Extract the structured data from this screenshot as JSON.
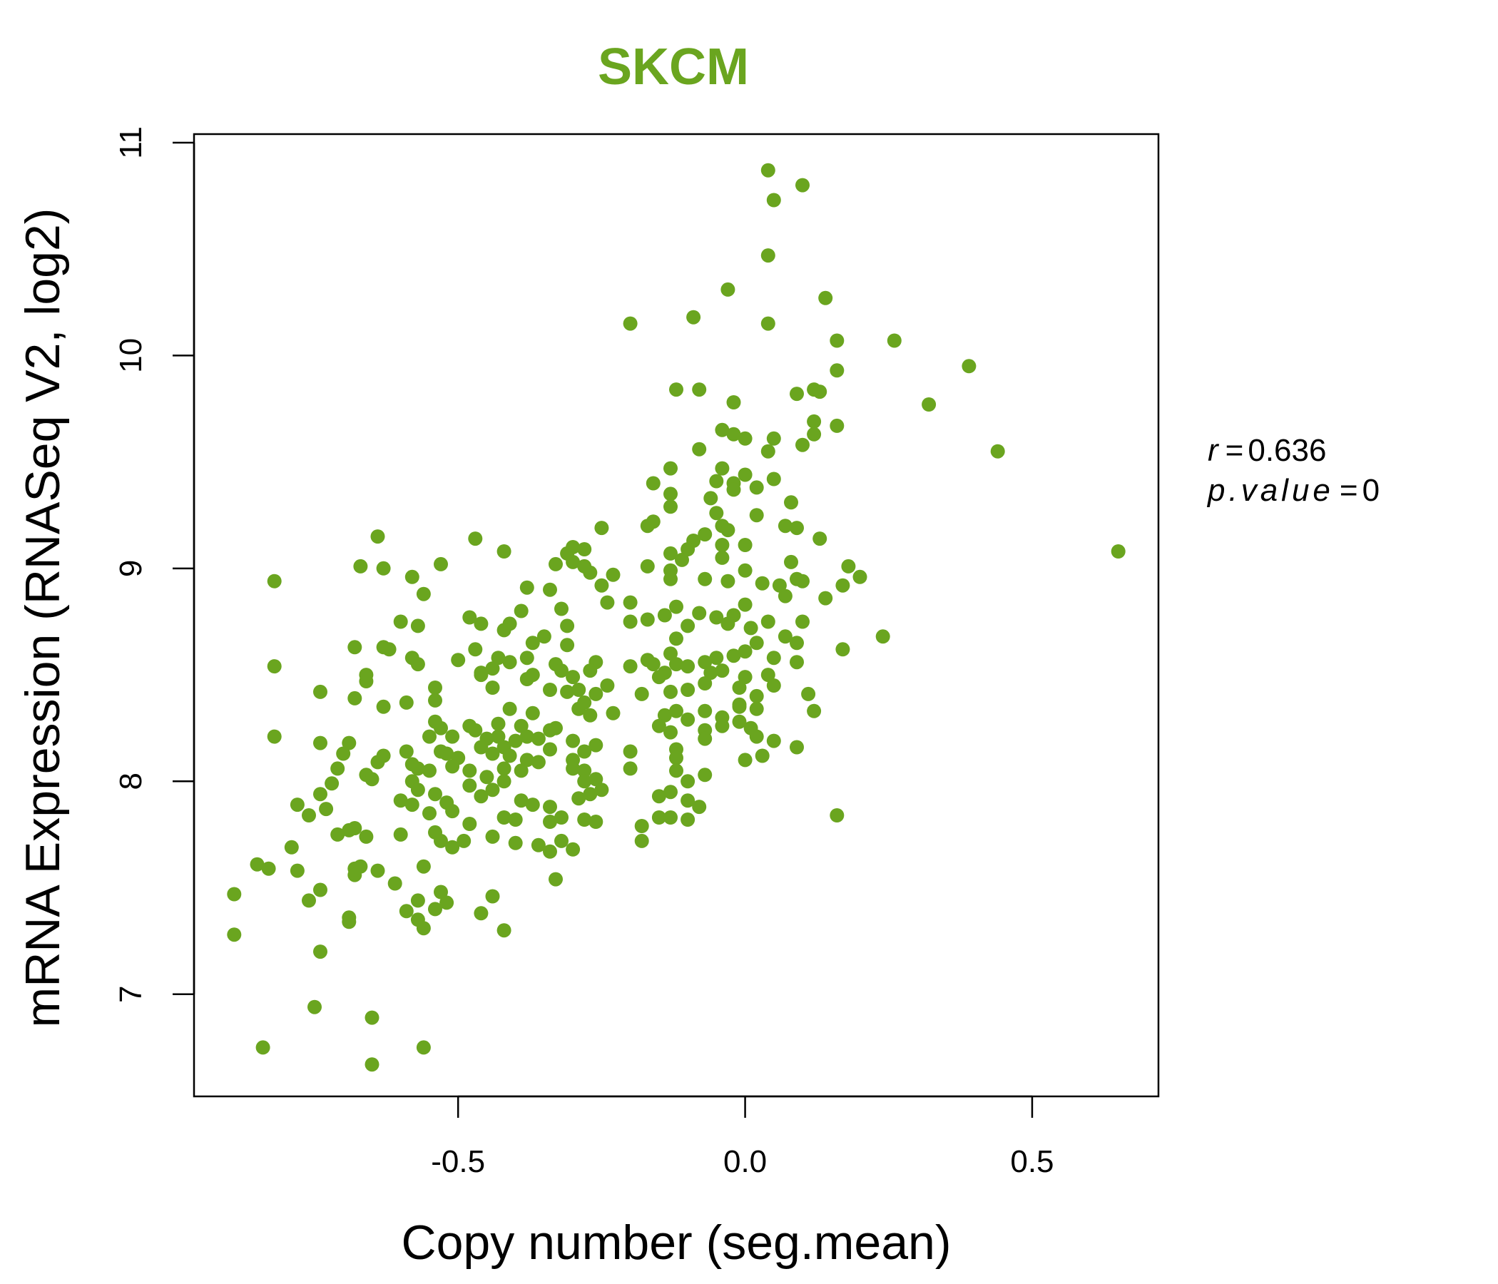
{
  "colors": {
    "accent": "#6aa51f",
    "axis": "#000000"
  },
  "chart_data": {
    "type": "scatter",
    "title": "SKCM",
    "xlabel": "Copy number (seg.mean)",
    "ylabel": "mRNA Expression (RNASeq V2, log2)",
    "xlim": [
      -0.96,
      0.72
    ],
    "ylim": [
      6.52,
      11.04
    ],
    "xticks": [
      -0.5,
      0.0,
      0.5
    ],
    "xtick_labels": [
      "-0.5",
      "0.0",
      "0.5"
    ],
    "yticks": [
      7,
      8,
      9,
      10,
      11
    ],
    "ytick_labels": [
      "7",
      "8",
      "9",
      "10",
      "11"
    ],
    "grid": false,
    "legend": null,
    "annotations": {
      "r_symbol": "r",
      "r_value": "0.636",
      "p_symbol": "p.value",
      "p_value": "0"
    },
    "points": [
      [
        0.04,
        10.87
      ],
      [
        0.1,
        10.8
      ],
      [
        0.05,
        10.73
      ],
      [
        0.04,
        10.47
      ],
      [
        -0.03,
        10.31
      ],
      [
        0.14,
        10.27
      ],
      [
        0.04,
        10.15
      ],
      [
        -0.2,
        10.15
      ],
      [
        -0.09,
        10.18
      ],
      [
        0.16,
        10.07
      ],
      [
        0.26,
        10.07
      ],
      [
        0.39,
        9.95
      ],
      [
        0.16,
        9.93
      ],
      [
        0.32,
        9.77
      ],
      [
        -0.12,
        9.84
      ],
      [
        -0.08,
        9.84
      ],
      [
        0.09,
        9.82
      ],
      [
        0.12,
        9.84
      ],
      [
        0.13,
        9.83
      ],
      [
        0.16,
        9.67
      ],
      [
        -0.02,
        9.78
      ],
      [
        0.44,
        9.55
      ],
      [
        0.65,
        9.08
      ],
      [
        0.12,
        9.69
      ],
      [
        0.12,
        9.63
      ],
      [
        -0.04,
        9.65
      ],
      [
        -0.02,
        9.63
      ],
      [
        0.0,
        9.61
      ],
      [
        0.05,
        9.61
      ],
      [
        0.1,
        9.58
      ],
      [
        0.04,
        9.55
      ],
      [
        -0.08,
        9.56
      ],
      [
        -0.04,
        9.47
      ],
      [
        0.0,
        9.44
      ],
      [
        -0.02,
        9.4
      ],
      [
        -0.13,
        9.47
      ],
      [
        -0.16,
        9.4
      ],
      [
        0.05,
        9.42
      ],
      [
        -0.05,
        9.41
      ],
      [
        -0.02,
        9.37
      ],
      [
        0.02,
        9.38
      ],
      [
        -0.13,
        9.35
      ],
      [
        -0.06,
        9.33
      ],
      [
        0.08,
        9.31
      ],
      [
        -0.13,
        9.29
      ],
      [
        -0.05,
        9.26
      ],
      [
        0.02,
        9.25
      ],
      [
        -0.16,
        9.22
      ],
      [
        -0.04,
        9.2
      ],
      [
        -0.03,
        9.18
      ],
      [
        0.07,
        9.2
      ],
      [
        0.09,
        9.19
      ],
      [
        -0.17,
        9.2
      ],
      [
        -0.25,
        9.19
      ],
      [
        -0.07,
        9.16
      ],
      [
        -0.09,
        9.13
      ],
      [
        -0.04,
        9.11
      ],
      [
        0.0,
        9.11
      ],
      [
        -0.1,
        9.09
      ],
      [
        -0.13,
        9.07
      ],
      [
        -0.11,
        9.04
      ],
      [
        -0.04,
        9.05
      ],
      [
        0.08,
        9.03
      ],
      [
        0.13,
        9.14
      ],
      [
        0.18,
        9.01
      ],
      [
        -0.17,
        9.01
      ],
      [
        -0.3,
        9.1
      ],
      [
        -0.31,
        9.07
      ],
      [
        -0.28,
        9.09
      ],
      [
        -0.3,
        9.03
      ],
      [
        -0.28,
        9.01
      ],
      [
        -0.33,
        9.02
      ],
      [
        -0.27,
        8.98
      ],
      [
        -0.23,
        8.97
      ],
      [
        -0.13,
        8.99
      ],
      [
        -0.13,
        8.95
      ],
      [
        -0.07,
        8.95
      ],
      [
        -0.03,
        8.94
      ],
      [
        0.0,
        8.99
      ],
      [
        0.03,
        8.93
      ],
      [
        0.06,
        8.92
      ],
      [
        0.09,
        8.95
      ],
      [
        0.1,
        8.94
      ],
      [
        0.2,
        8.96
      ],
      [
        -0.25,
        8.92
      ],
      [
        -0.38,
        8.91
      ],
      [
        -0.34,
        8.9
      ],
      [
        -0.42,
        9.08
      ],
      [
        -0.47,
        9.14
      ],
      [
        -0.53,
        9.02
      ],
      [
        -0.58,
        8.96
      ],
      [
        -0.56,
        8.88
      ],
      [
        -0.63,
        9.0
      ],
      [
        -0.67,
        9.01
      ],
      [
        -0.64,
        9.15
      ],
      [
        -0.82,
        8.94
      ],
      [
        -0.24,
        8.84
      ],
      [
        -0.2,
        8.84
      ],
      [
        -0.12,
        8.82
      ],
      [
        -0.08,
        8.79
      ],
      [
        -0.02,
        8.78
      ],
      [
        0.0,
        8.83
      ],
      [
        0.07,
        8.87
      ],
      [
        0.14,
        8.86
      ],
      [
        0.17,
        8.92
      ],
      [
        -0.2,
        8.75
      ],
      [
        -0.17,
        8.76
      ],
      [
        -0.14,
        8.78
      ],
      [
        -0.1,
        8.73
      ],
      [
        -0.05,
        8.77
      ],
      [
        -0.03,
        8.74
      ],
      [
        0.01,
        8.72
      ],
      [
        0.04,
        8.75
      ],
      [
        0.1,
        8.75
      ],
      [
        0.07,
        8.68
      ],
      [
        0.09,
        8.65
      ],
      [
        0.17,
        8.62
      ],
      [
        0.24,
        8.68
      ],
      [
        -0.32,
        8.81
      ],
      [
        -0.39,
        8.8
      ],
      [
        -0.41,
        8.74
      ],
      [
        -0.42,
        8.71
      ],
      [
        -0.48,
        8.77
      ],
      [
        -0.46,
        8.74
      ],
      [
        -0.35,
        8.68
      ],
      [
        -0.37,
        8.65
      ],
      [
        -0.31,
        8.73
      ],
      [
        -0.31,
        8.64
      ],
      [
        -0.57,
        8.73
      ],
      [
        -0.6,
        8.75
      ],
      [
        -0.63,
        8.63
      ],
      [
        -0.62,
        8.62
      ],
      [
        -0.68,
        8.63
      ],
      [
        -0.58,
        8.58
      ],
      [
        -0.57,
        8.55
      ],
      [
        -0.47,
        8.62
      ],
      [
        -0.43,
        8.58
      ],
      [
        -0.41,
        8.56
      ],
      [
        -0.5,
        8.57
      ],
      [
        -0.46,
        8.51
      ],
      [
        -0.44,
        8.53
      ],
      [
        -0.38,
        8.58
      ],
      [
        -0.37,
        8.5
      ],
      [
        -0.33,
        8.55
      ],
      [
        -0.32,
        8.52
      ],
      [
        -0.26,
        8.56
      ],
      [
        -0.27,
        8.52
      ],
      [
        -0.2,
        8.54
      ],
      [
        -0.17,
        8.57
      ],
      [
        -0.16,
        8.55
      ],
      [
        -0.14,
        8.51
      ],
      [
        -0.12,
        8.55
      ],
      [
        -0.1,
        8.54
      ],
      [
        -0.13,
        8.6
      ],
      [
        -0.12,
        8.67
      ],
      [
        -0.07,
        8.56
      ],
      [
        -0.05,
        8.58
      ],
      [
        -0.02,
        8.59
      ],
      [
        0.0,
        8.61
      ],
      [
        0.02,
        8.65
      ],
      [
        0.05,
        8.58
      ],
      [
        0.09,
        8.56
      ],
      [
        -0.04,
        8.52
      ],
      [
        -0.06,
        8.51
      ],
      [
        0.0,
        8.49
      ],
      [
        0.04,
        8.5
      ],
      [
        -0.07,
        8.46
      ],
      [
        -0.1,
        8.43
      ],
      [
        -0.13,
        8.42
      ],
      [
        -0.15,
        8.49
      ],
      [
        -0.18,
        8.41
      ],
      [
        -0.24,
        8.45
      ],
      [
        -0.26,
        8.41
      ],
      [
        -0.29,
        8.43
      ],
      [
        -0.3,
        8.49
      ],
      [
        -0.31,
        8.42
      ],
      [
        -0.34,
        8.43
      ],
      [
        -0.38,
        8.48
      ],
      [
        -0.44,
        8.44
      ],
      [
        -0.46,
        8.5
      ],
      [
        -0.54,
        8.44
      ],
      [
        -0.54,
        8.38
      ],
      [
        -0.59,
        8.37
      ],
      [
        -0.63,
        8.35
      ],
      [
        -0.66,
        8.47
      ],
      [
        -0.66,
        8.5
      ],
      [
        -0.68,
        8.39
      ],
      [
        -0.82,
        8.54
      ],
      [
        -0.74,
        8.42
      ],
      [
        -0.01,
        8.44
      ],
      [
        0.02,
        8.4
      ],
      [
        0.05,
        8.45
      ],
      [
        0.11,
        8.41
      ],
      [
        0.12,
        8.33
      ],
      [
        -0.12,
        8.33
      ],
      [
        -0.14,
        8.31
      ],
      [
        -0.1,
        8.29
      ],
      [
        -0.07,
        8.33
      ],
      [
        -0.04,
        8.3
      ],
      [
        -0.01,
        8.35
      ],
      [
        -0.01,
        8.36
      ],
      [
        0.02,
        8.34
      ],
      [
        -0.41,
        8.34
      ],
      [
        -0.37,
        8.32
      ],
      [
        -0.29,
        8.34
      ],
      [
        -0.28,
        8.37
      ],
      [
        -0.27,
        8.31
      ],
      [
        -0.23,
        8.32
      ],
      [
        -0.43,
        8.27
      ],
      [
        -0.39,
        8.26
      ],
      [
        -0.34,
        8.24
      ],
      [
        -0.33,
        8.25
      ],
      [
        -0.3,
        8.19
      ],
      [
        -0.36,
        8.2
      ],
      [
        -0.38,
        8.21
      ],
      [
        -0.4,
        8.19
      ],
      [
        -0.43,
        8.21
      ],
      [
        -0.45,
        8.2
      ],
      [
        -0.47,
        8.24
      ],
      [
        -0.48,
        8.26
      ],
      [
        -0.51,
        8.21
      ],
      [
        -0.53,
        8.25
      ],
      [
        -0.54,
        8.28
      ],
      [
        -0.55,
        8.21
      ],
      [
        -0.53,
        8.14
      ],
      [
        -0.52,
        8.13
      ],
      [
        -0.5,
        8.11
      ],
      [
        -0.46,
        8.16
      ],
      [
        -0.44,
        8.13
      ],
      [
        -0.42,
        8.16
      ],
      [
        -0.41,
        8.12
      ],
      [
        -0.38,
        8.1
      ],
      [
        -0.34,
        8.15
      ],
      [
        -0.3,
        8.1
      ],
      [
        -0.28,
        8.14
      ],
      [
        -0.26,
        8.17
      ],
      [
        -0.2,
        8.14
      ],
      [
        -0.13,
        8.23
      ],
      [
        -0.15,
        8.26
      ],
      [
        -0.07,
        8.24
      ],
      [
        -0.04,
        8.26
      ],
      [
        -0.01,
        8.28
      ],
      [
        0.01,
        8.25
      ],
      [
        0.02,
        8.21
      ],
      [
        0.05,
        8.19
      ],
      [
        0.09,
        8.16
      ],
      [
        -0.12,
        8.15
      ],
      [
        -0.07,
        8.2
      ],
      [
        -0.12,
        8.11
      ],
      [
        -0.59,
        8.14
      ],
      [
        -0.63,
        8.12
      ],
      [
        -0.7,
        8.13
      ],
      [
        -0.74,
        8.18
      ],
      [
        -0.69,
        8.18
      ],
      [
        -0.82,
        8.21
      ],
      [
        -0.71,
        8.06
      ],
      [
        -0.64,
        8.09
      ],
      [
        -0.58,
        8.08
      ],
      [
        -0.57,
        8.06
      ],
      [
        -0.55,
        8.05
      ],
      [
        -0.51,
        8.07
      ],
      [
        -0.48,
        8.05
      ],
      [
        -0.45,
        8.02
      ],
      [
        -0.42,
        8.06
      ],
      [
        -0.39,
        8.05
      ],
      [
        -0.36,
        8.09
      ],
      [
        -0.3,
        8.06
      ],
      [
        -0.28,
        8.05
      ],
      [
        -0.26,
        8.01
      ],
      [
        -0.2,
        8.06
      ],
      [
        -0.12,
        8.05
      ],
      [
        -0.1,
        8.0
      ],
      [
        -0.07,
        8.03
      ],
      [
        0.0,
        8.1
      ],
      [
        0.03,
        8.12
      ],
      [
        -0.72,
        7.99
      ],
      [
        -0.74,
        7.94
      ],
      [
        -0.66,
        8.03
      ],
      [
        -0.65,
        8.01
      ],
      [
        -0.58,
        8.0
      ],
      [
        -0.57,
        7.96
      ],
      [
        -0.54,
        7.94
      ],
      [
        -0.52,
        7.9
      ],
      [
        -0.48,
        7.98
      ],
      [
        -0.46,
        7.93
      ],
      [
        -0.44,
        7.96
      ],
      [
        -0.42,
        8.0
      ],
      [
        -0.39,
        7.91
      ],
      [
        -0.37,
        7.89
      ],
      [
        -0.34,
        7.88
      ],
      [
        -0.29,
        7.92
      ],
      [
        -0.27,
        7.94
      ],
      [
        -0.25,
        7.96
      ],
      [
        -0.28,
        8.0
      ],
      [
        -0.15,
        7.93
      ],
      [
        -0.13,
        7.95
      ],
      [
        -0.1,
        7.91
      ],
      [
        -0.08,
        7.88
      ],
      [
        -0.78,
        7.89
      ],
      [
        -0.76,
        7.84
      ],
      [
        -0.73,
        7.87
      ],
      [
        -0.6,
        7.91
      ],
      [
        -0.58,
        7.89
      ],
      [
        -0.55,
        7.85
      ],
      [
        -0.51,
        7.86
      ],
      [
        -0.48,
        7.8
      ],
      [
        -0.42,
        7.83
      ],
      [
        -0.4,
        7.82
      ],
      [
        -0.34,
        7.81
      ],
      [
        -0.32,
        7.83
      ],
      [
        -0.28,
        7.82
      ],
      [
        -0.26,
        7.81
      ],
      [
        -0.18,
        7.79
      ],
      [
        -0.15,
        7.83
      ],
      [
        -0.13,
        7.83
      ],
      [
        -0.1,
        7.82
      ],
      [
        0.16,
        7.84
      ],
      [
        -0.71,
        7.75
      ],
      [
        -0.69,
        7.77
      ],
      [
        -0.68,
        7.78
      ],
      [
        -0.66,
        7.74
      ],
      [
        -0.6,
        7.75
      ],
      [
        -0.54,
        7.76
      ],
      [
        -0.53,
        7.72
      ],
      [
        -0.51,
        7.69
      ],
      [
        -0.49,
        7.72
      ],
      [
        -0.44,
        7.74
      ],
      [
        -0.4,
        7.71
      ],
      [
        -0.36,
        7.7
      ],
      [
        -0.34,
        7.67
      ],
      [
        -0.32,
        7.72
      ],
      [
        -0.3,
        7.68
      ],
      [
        -0.18,
        7.72
      ],
      [
        -0.79,
        7.69
      ],
      [
        -0.85,
        7.61
      ],
      [
        -0.83,
        7.59
      ],
      [
        -0.78,
        7.58
      ],
      [
        -0.74,
        7.49
      ],
      [
        -0.68,
        7.59
      ],
      [
        -0.67,
        7.6
      ],
      [
        -0.68,
        7.56
      ],
      [
        -0.64,
        7.58
      ],
      [
        -0.61,
        7.52
      ],
      [
        -0.56,
        7.6
      ],
      [
        -0.53,
        7.48
      ],
      [
        -0.52,
        7.43
      ],
      [
        -0.54,
        7.4
      ],
      [
        -0.57,
        7.44
      ],
      [
        -0.59,
        7.39
      ],
      [
        -0.57,
        7.35
      ],
      [
        -0.56,
        7.31
      ],
      [
        -0.46,
        7.38
      ],
      [
        -0.44,
        7.46
      ],
      [
        -0.42,
        7.3
      ],
      [
        -0.33,
        7.54
      ],
      [
        -0.89,
        7.47
      ],
      [
        -0.89,
        7.28
      ],
      [
        -0.76,
        7.44
      ],
      [
        -0.69,
        7.36
      ],
      [
        -0.69,
        7.34
      ],
      [
        -0.74,
        7.2
      ],
      [
        -0.75,
        6.94
      ],
      [
        -0.84,
        6.75
      ],
      [
        -0.65,
        6.89
      ],
      [
        -0.65,
        6.67
      ],
      [
        -0.56,
        6.75
      ]
    ]
  }
}
